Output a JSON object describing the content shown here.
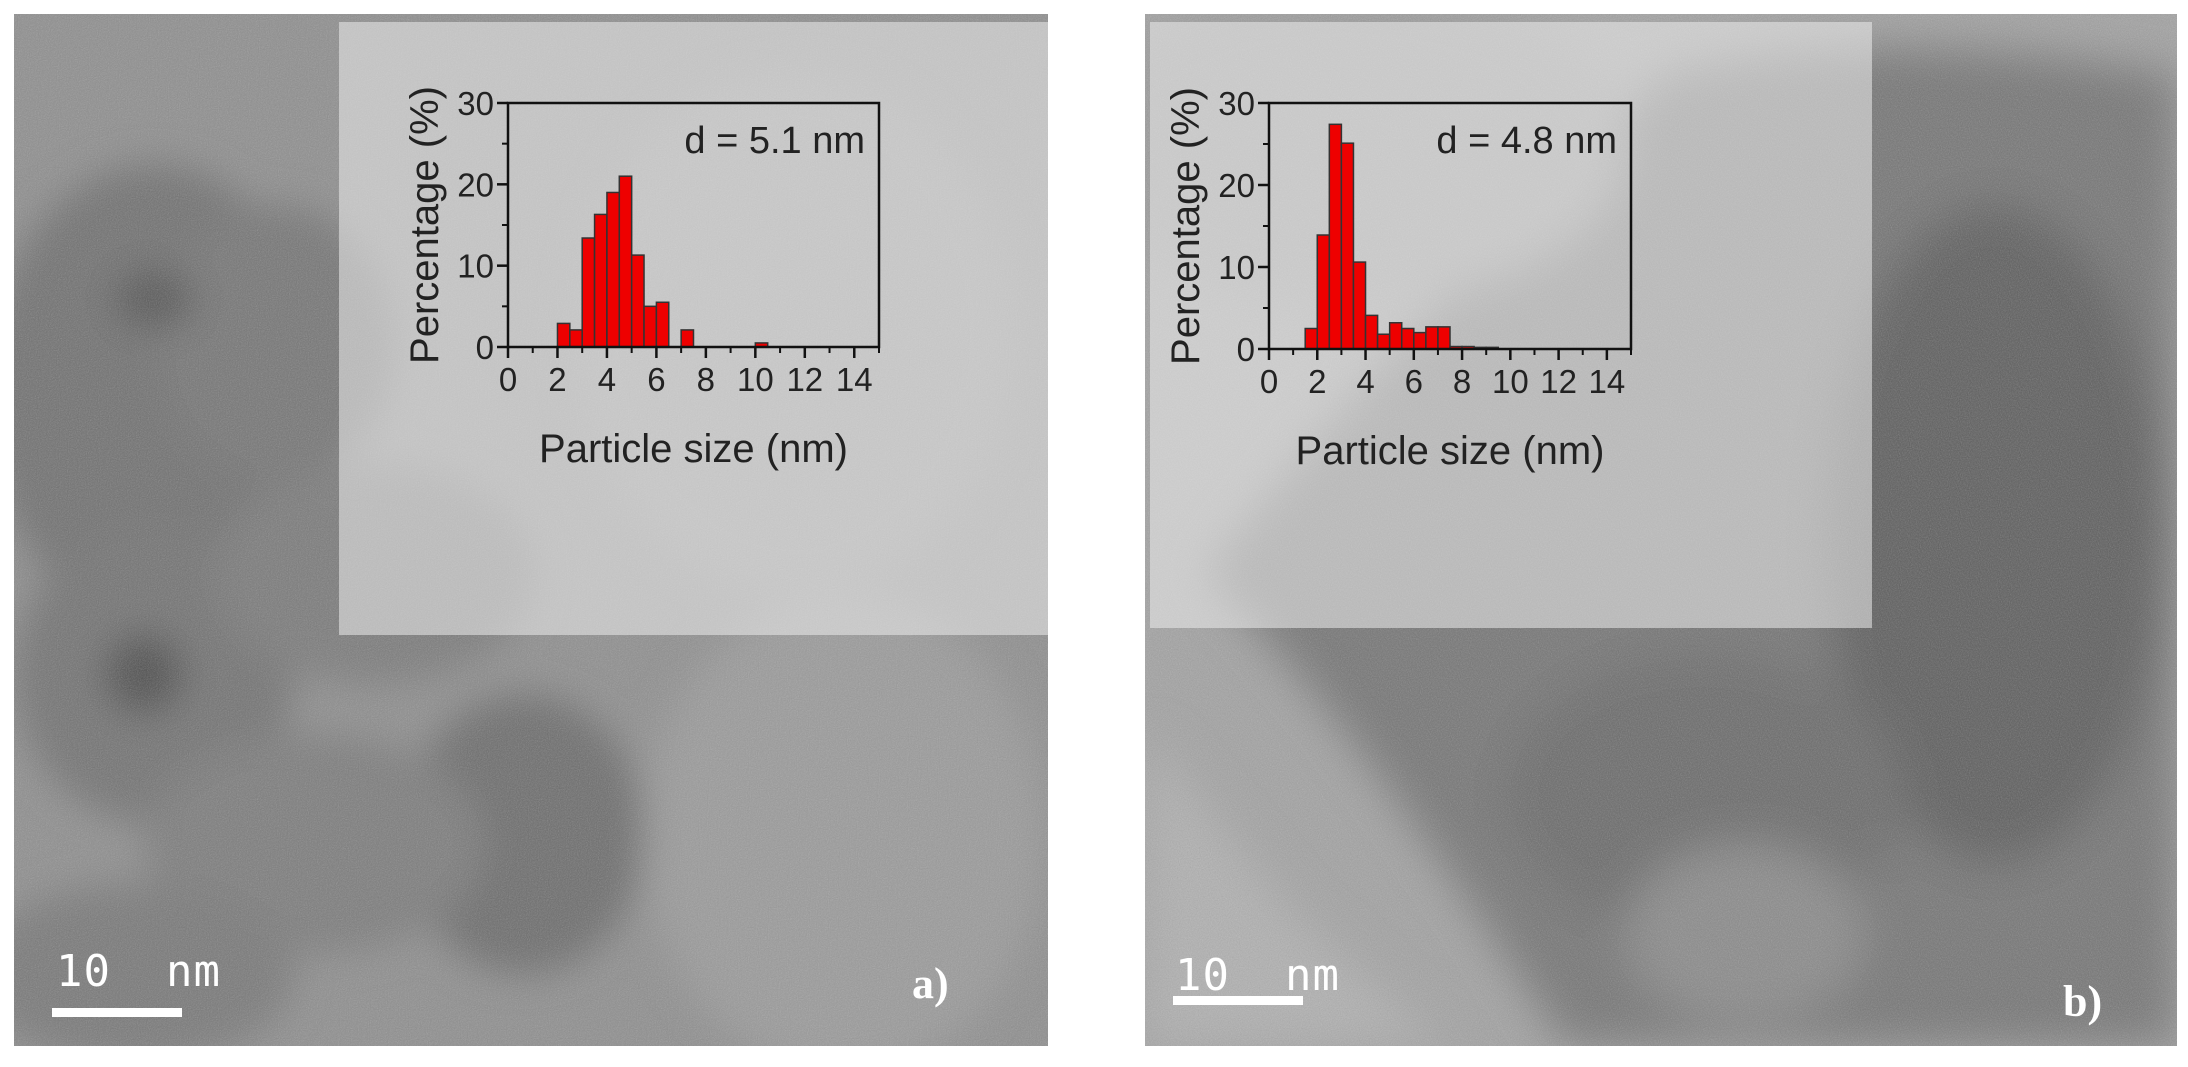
{
  "panels": [
    {
      "label": "a)",
      "scale_label": "10  nm",
      "inset": {
        "annotation": "d = 5.1 nm"
      }
    },
    {
      "label": "b)",
      "scale_label": "10  nm",
      "inset": {
        "annotation": "d = 4.8 nm"
      }
    }
  ],
  "colors": {
    "bar_fill": "#ee0000",
    "bar_stroke": "#333333",
    "axis": "#111111"
  },
  "chart_data": [
    {
      "type": "bar",
      "title": "",
      "annotation": "d = 5.1 nm",
      "xlabel": "Particle size (nm)",
      "ylabel": "Percentage (%)",
      "xlim": [
        0,
        15
      ],
      "ylim": [
        0,
        30
      ],
      "xticks": [
        0,
        2,
        4,
        6,
        8,
        10,
        12,
        14
      ],
      "yticks": [
        0,
        10,
        20,
        30
      ],
      "bin_width": 0.5,
      "x": [
        2.25,
        2.75,
        3.25,
        3.75,
        4.25,
        4.75,
        5.25,
        5.75,
        6.25,
        7.25,
        10.25
      ],
      "values": [
        2.9,
        2.1,
        13.4,
        16.3,
        19.0,
        21.0,
        11.3,
        5.0,
        5.5,
        2.1,
        0.5
      ],
      "grid": false
    },
    {
      "type": "bar",
      "title": "",
      "annotation": "d = 4.8 nm",
      "xlabel": "Particle size (nm)",
      "ylabel": "Percentage (%)",
      "xlim": [
        0,
        15
      ],
      "ylim": [
        0,
        30
      ],
      "xticks": [
        0,
        2,
        4,
        6,
        8,
        10,
        12,
        14
      ],
      "yticks": [
        0,
        10,
        20,
        30
      ],
      "bin_width": 0.5,
      "x": [
        1.75,
        2.25,
        2.75,
        3.25,
        3.75,
        4.25,
        4.75,
        5.25,
        5.75,
        6.25,
        6.75,
        7.25,
        7.75,
        8.25,
        8.75,
        9.25
      ],
      "values": [
        2.5,
        13.9,
        27.4,
        25.1,
        10.6,
        4.1,
        1.8,
        3.2,
        2.5,
        2.0,
        2.7,
        2.7,
        0.3,
        0.3,
        0.2,
        0.2
      ],
      "grid": false
    }
  ]
}
